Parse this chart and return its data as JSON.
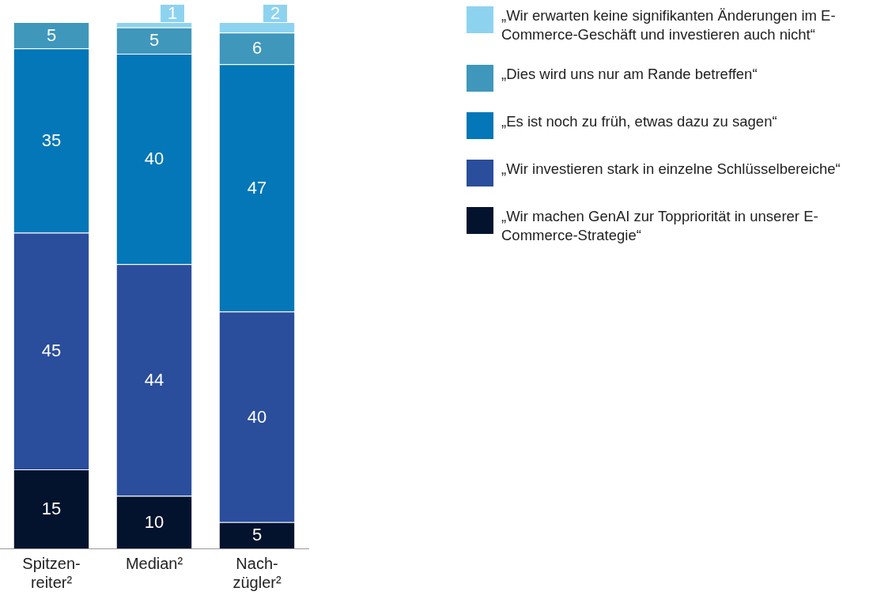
{
  "chart_data": {
    "type": "bar",
    "stacked": true,
    "data_labels": true,
    "grid": false,
    "legend": "right",
    "categories": [
      "Spitzen-\nreiter²",
      "Median²",
      "Nach-\nzügler²"
    ],
    "series": [
      {
        "name": "„Wir machen GenAI zur Toppriorität in unserer E-Commerce-Strategie“",
        "color": "#03132e",
        "values": [
          15,
          10,
          5
        ]
      },
      {
        "name": "„Wir investieren stark in einzelne Schlüsselbereiche“",
        "color": "#2a4d9c",
        "values": [
          45,
          44,
          40
        ]
      },
      {
        "name": "„Es ist noch zu früh, etwas dazu zu sagen“",
        "color": "#0377b7",
        "values": [
          35,
          40,
          47
        ]
      },
      {
        "name": "„Dies wird uns nur am Rande betreffen“",
        "color": "#3f97bb",
        "values": [
          5,
          5,
          6
        ]
      },
      {
        "name": "„Wir erwarten keine signifikanten Änderungen im E-Commerce-Geschäft und investieren auch nicht“",
        "color": "#8dd3f0",
        "values": [
          null,
          1,
          2
        ]
      }
    ]
  }
}
